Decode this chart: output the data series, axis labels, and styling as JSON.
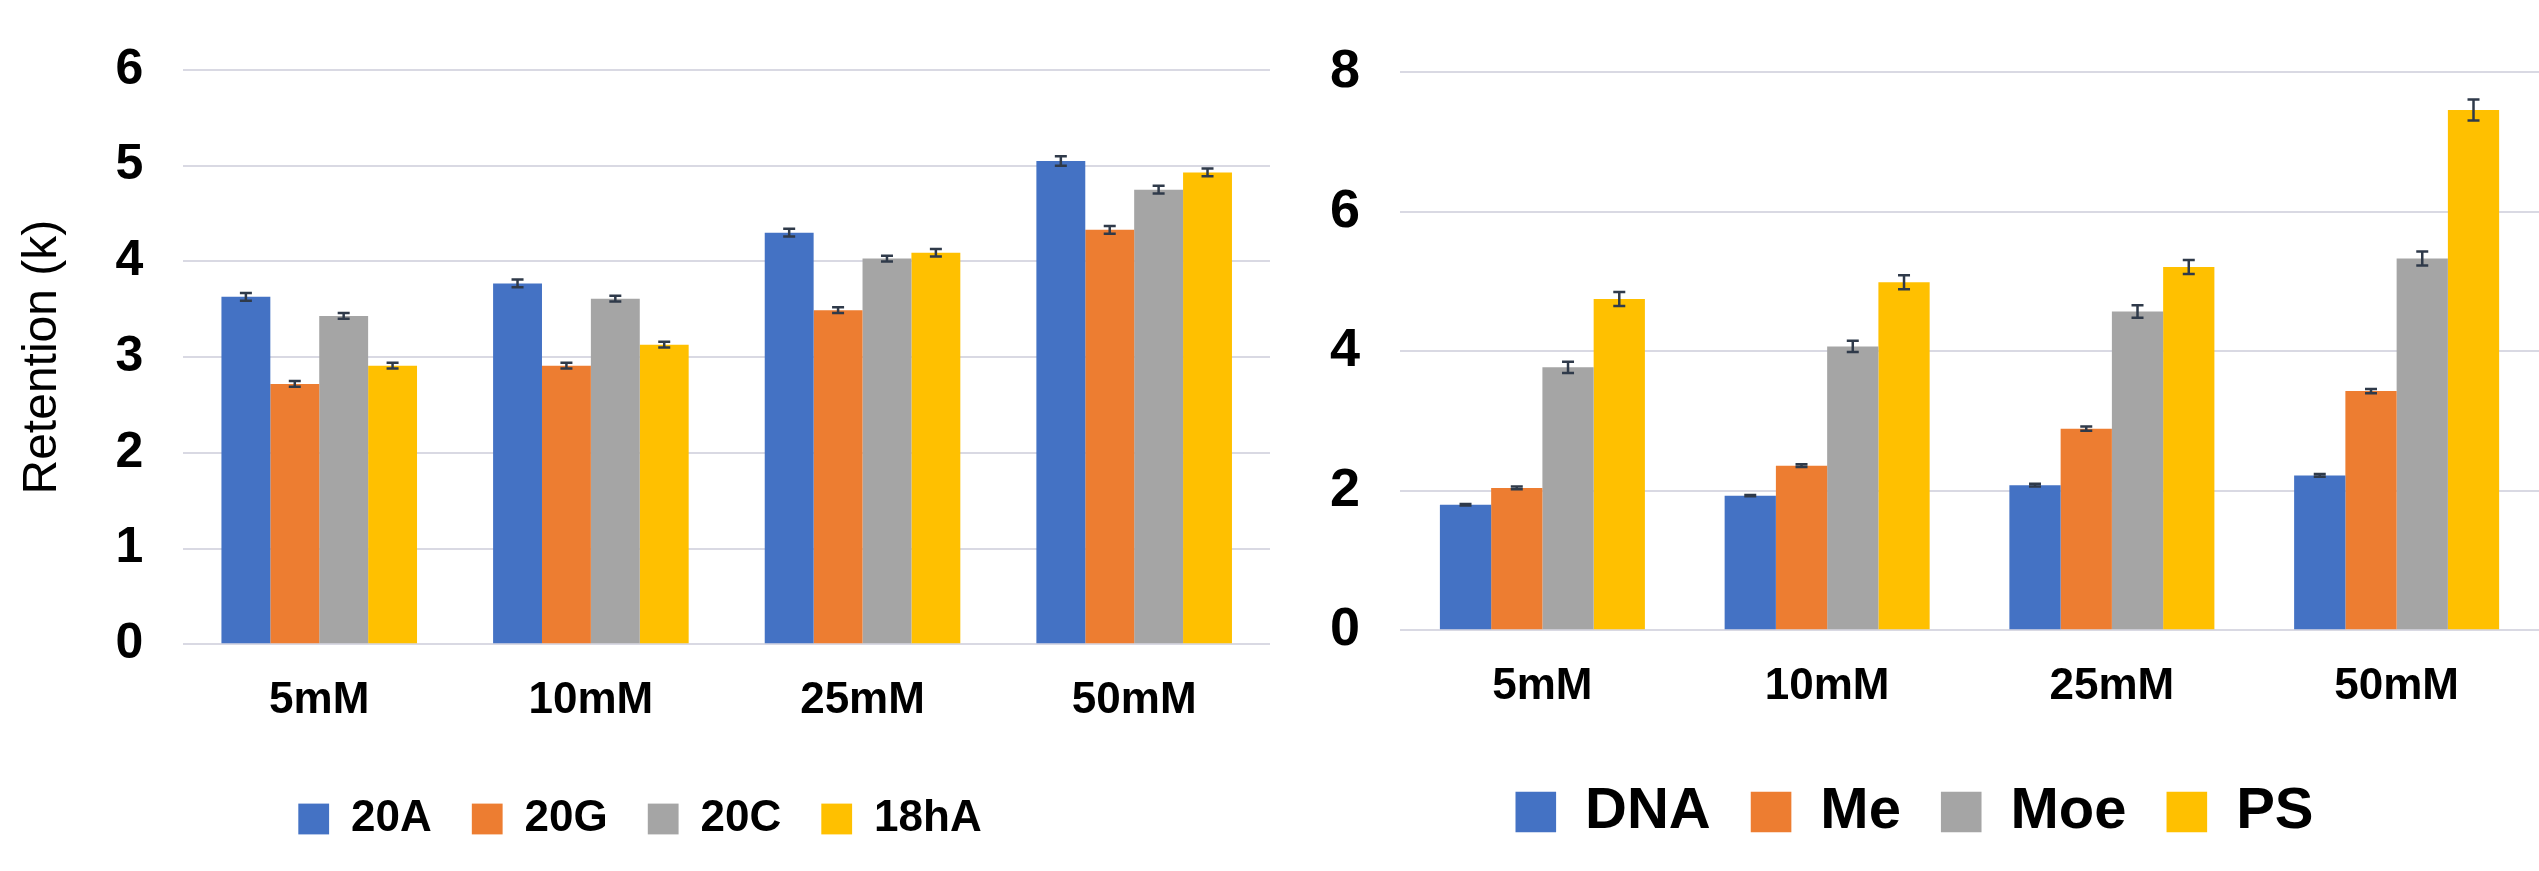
{
  "chart_data": [
    {
      "type": "bar",
      "ylabel": "Retention (k)",
      "categories": [
        "5mM",
        "10mM",
        "25mM",
        "50mM"
      ],
      "ylim": [
        0,
        6
      ],
      "yticks": [
        0,
        1,
        2,
        3,
        4,
        5,
        6
      ],
      "grid": "y",
      "legend": "bottom",
      "series": [
        {
          "name": "20A",
          "color": "#4472c4",
          "values": [
            3.63,
            3.77,
            4.3,
            5.05
          ],
          "errors": [
            0.04,
            0.04,
            0.04,
            0.05
          ]
        },
        {
          "name": "20G",
          "color": "#ed7d31",
          "values": [
            2.72,
            2.91,
            3.49,
            4.33
          ],
          "errors": [
            0.03,
            0.03,
            0.03,
            0.04
          ]
        },
        {
          "name": "20C",
          "color": "#a5a5a5",
          "values": [
            3.43,
            3.61,
            4.03,
            4.75
          ],
          "errors": [
            0.03,
            0.03,
            0.03,
            0.04
          ]
        },
        {
          "name": "18hA",
          "color": "#ffc000",
          "values": [
            2.91,
            3.13,
            4.09,
            4.93
          ],
          "errors": [
            0.03,
            0.03,
            0.04,
            0.04
          ]
        }
      ]
    },
    {
      "type": "bar",
      "categories": [
        "5mM",
        "10mM",
        "25mM",
        "50mM"
      ],
      "ylim": [
        0,
        8
      ],
      "yticks": [
        0,
        2,
        4,
        6,
        8
      ],
      "grid": "y",
      "legend": "bottom",
      "series": [
        {
          "name": "DNA",
          "color": "#4472c4",
          "values": [
            1.8,
            1.93,
            2.08,
            2.22
          ],
          "errors": [
            0.01,
            0.01,
            0.02,
            0.02
          ]
        },
        {
          "name": "Me",
          "color": "#ed7d31",
          "values": [
            2.04,
            2.36,
            2.89,
            3.43
          ],
          "errors": [
            0.02,
            0.02,
            0.03,
            0.03
          ]
        },
        {
          "name": "Moe",
          "color": "#a5a5a5",
          "values": [
            3.77,
            4.07,
            4.57,
            5.33
          ],
          "errors": [
            0.08,
            0.08,
            0.09,
            0.1
          ]
        },
        {
          "name": "PS",
          "color": "#ffc000",
          "values": [
            4.75,
            4.99,
            5.21,
            7.46
          ],
          "errors": [
            0.1,
            0.1,
            0.1,
            0.15
          ]
        }
      ]
    }
  ]
}
